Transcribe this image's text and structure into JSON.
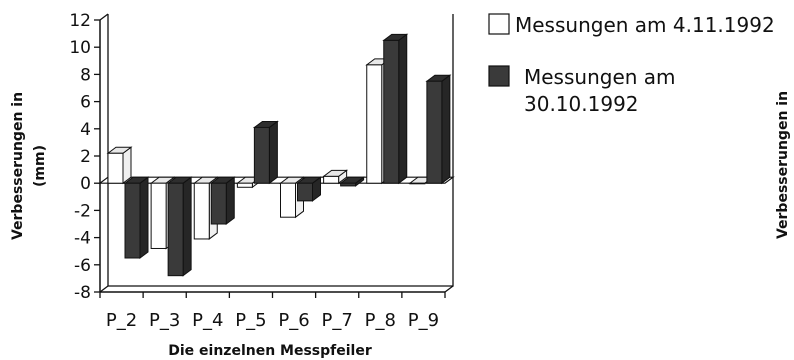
{
  "chart_data": {
    "type": "bar",
    "title": "",
    "xlabel": "Die einzelnen Messpfeiler",
    "ylabel_line1": "Verbesserungen in",
    "ylabel_line2": "(mm)",
    "ylabel_right": "Verbesserungen in",
    "ylim": [
      -8,
      12
    ],
    "yticks": [
      12,
      10,
      8,
      6,
      4,
      2,
      0,
      -2,
      -4,
      -6,
      -8
    ],
    "ytick_labels": [
      "12",
      "10",
      "8",
      "6",
      "4",
      "2",
      "0",
      "-2",
      "-4",
      "-6",
      "-8"
    ],
    "categories": [
      "P_2",
      "P_3",
      "P_4",
      "P_5",
      "P_6",
      "P_7",
      "P_8",
      "P_9"
    ],
    "series": [
      {
        "name": "Messungen am 4.11.1992",
        "fill": "#ffffff",
        "values": [
          2.2,
          -4.8,
          -4.1,
          -0.3,
          -2.5,
          0.5,
          8.7,
          0.0
        ]
      },
      {
        "name": "Messungen am 30.10.1992",
        "fill": "#3a3a3a",
        "values": [
          -5.5,
          -6.8,
          -3.0,
          4.1,
          -1.3,
          -0.2,
          10.5,
          7.5
        ]
      }
    ],
    "legend": {
      "position": "right",
      "items": [
        {
          "line1": "Messungen am 4.11.1992",
          "line2": ""
        },
        {
          "line1": "Messungen am",
          "line2": "30.10.1992"
        }
      ]
    },
    "grid": false
  }
}
